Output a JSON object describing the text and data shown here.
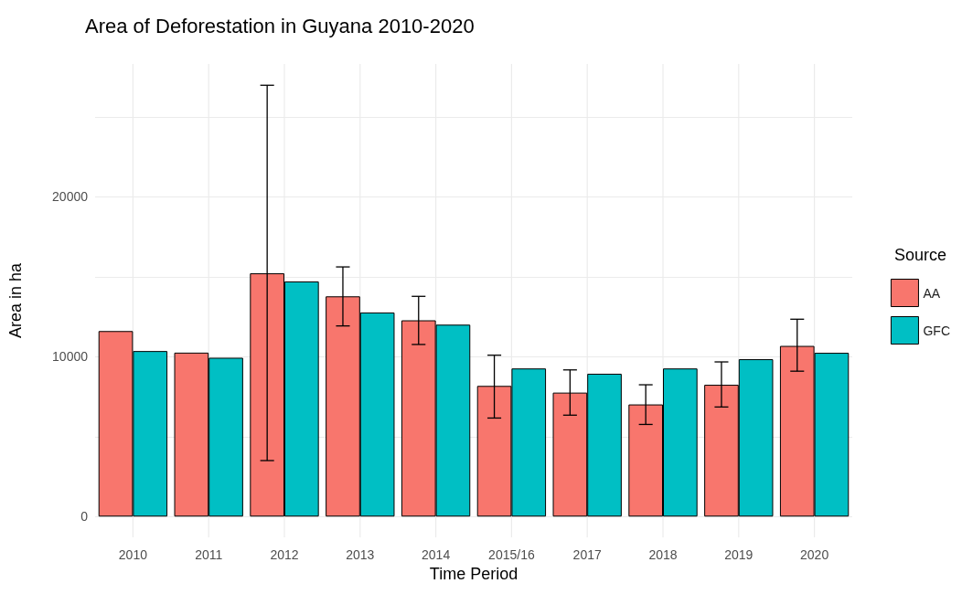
{
  "chart_data": {
    "type": "bar",
    "title": "Area of Deforestation in Guyana 2010-2020",
    "xlabel": "Time Period",
    "ylabel": "Area in ha",
    "legend_title": "Source",
    "categories": [
      "2010",
      "2011",
      "2012",
      "2013",
      "2014",
      "2015/16",
      "2017",
      "2018",
      "2019",
      "2020"
    ],
    "series": [
      {
        "name": "AA",
        "color": "#f8766d",
        "values": [
          11600,
          10250,
          15210,
          13770,
          12270,
          8170,
          7750,
          7010,
          8240,
          10670
        ],
        "errors": [
          null,
          null,
          [
            3500,
            26970
          ],
          [
            11920,
            15610
          ],
          [
            10760,
            13770
          ],
          [
            6160,
            10090
          ],
          [
            6340,
            9170
          ],
          [
            5760,
            8240
          ],
          [
            6850,
            9670
          ],
          [
            9090,
            12340
          ]
        ]
      },
      {
        "name": "GFC",
        "color": "#00bfc4",
        "values": [
          10350,
          9930,
          14700,
          12760,
          12000,
          9260,
          8930,
          9260,
          9840,
          10240
        ]
      }
    ],
    "ylim": [
      -1300,
      28300
    ],
    "yticks": [
      0,
      {
        "value": 5000,
        "label": null
      },
      10000,
      {
        "value": 15000,
        "label": null
      },
      20000,
      {
        "value": 25000,
        "label": null
      }
    ],
    "grid": true,
    "legend": "right"
  }
}
